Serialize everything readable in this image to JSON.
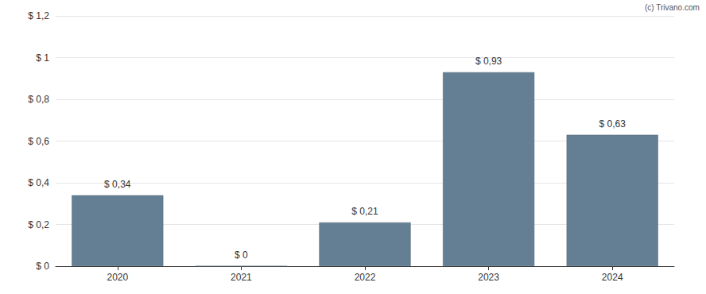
{
  "chart_data": {
    "type": "bar",
    "annotations": [
      "(c) Trivano.com"
    ],
    "categories": [
      "2020",
      "2021",
      "2022",
      "2023",
      "2024"
    ],
    "values": [
      0.34,
      0,
      0.21,
      0.93,
      0.63
    ],
    "value_labels": [
      "$ 0,34",
      "$ 0",
      "$ 0,21",
      "$ 0,93",
      "$ 0,63"
    ],
    "data_labels": true,
    "color": "#647f94",
    "ylim": [
      0,
      1.2
    ],
    "yticks": [
      {
        "value": 0,
        "label": "$ 0"
      },
      {
        "value": 0.2,
        "label": "$ 0,2"
      },
      {
        "value": 0.4,
        "label": "$ 0,4"
      },
      {
        "value": 0.6,
        "label": "$ 0,6"
      },
      {
        "value": 0.8,
        "label": "$ 0,8"
      },
      {
        "value": 1,
        "label": "$ 1"
      },
      {
        "value": 1.2,
        "label": "$ 1,2"
      }
    ],
    "grid": true
  }
}
